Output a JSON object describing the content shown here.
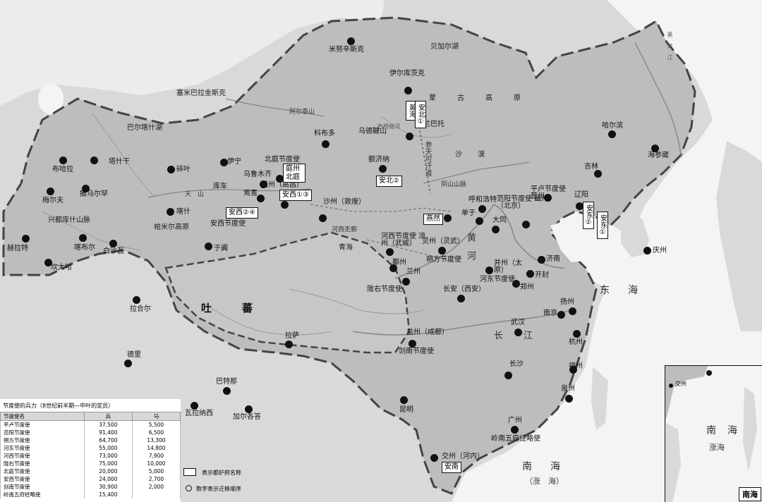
{
  "map": {
    "colors": {
      "land_inside": "#bdbdbd",
      "land_outside": "#d9d9d9",
      "water": "#f4f4f4",
      "border": "#444444"
    },
    "regions": {
      "tubo": "吐　蕃",
      "mongol": "蒙　古　高　原",
      "east_sea": "东　海",
      "south_sea": "南　海",
      "south_sea_sub": "（涨　海）",
      "qinghai": "青海",
      "pamir": "帕米尔高原",
      "desert": "沙　漠",
      "hindu_kush": "兴都库什山脉",
      "samarkand_region": "塞米巴拉金斯克",
      "balkhash": "巴尔喀什湖",
      "baikal": "贝加尔湖",
      "tianshan": "天　山",
      "altai": "阿尔泰山",
      "yangtze": "长　江",
      "yellow_river": "黄　河",
      "heilongjiang": "黑　龙　江",
      "shaanxi_road": "参天可汗道",
      "yinshan": "阴山山脉",
      "hexi_corridor": "河西走廊",
      "jiulong_river": "色楞格河"
    },
    "cities": [
      "米努辛斯克",
      "伊尔库茨克",
      "巴尔喀什湖",
      "乌兰巴托",
      "科布多",
      "乌德鞬山",
      "额济纳",
      "塔什干",
      "碎叶",
      "伊宁",
      "北庭节度使",
      "乌鲁木齐",
      "西州（高昌）",
      "焉耆",
      "库车",
      "喀什",
      "安西节度使",
      "于阗",
      "布哈拉",
      "撒马尔罕",
      "梅尔夫",
      "赫拉特",
      "喀布尔",
      "坎大哈",
      "白沙瓦",
      "拉合尔",
      "德里",
      "巴特那",
      "瓦拉纳西",
      "加尔各答",
      "沙州（敦煌）",
      "河西节度使 凉州（武威）",
      "鄯州",
      "兰州",
      "陇右节度使",
      "灵州（灵武）",
      "朔方节度使",
      "单于",
      "呼和浩特",
      "大同",
      "范阳节度使 幽州（北京）",
      "平卢节度使 营州",
      "辽阳",
      "哈尔滨",
      "吉林",
      "海参崴",
      "庆州",
      "济南",
      "开封",
      "郑州",
      "并州（太原）",
      "河东节度使",
      "长安（西安）",
      "扬州",
      "南京",
      "杭州",
      "武汉",
      "益州（成都）",
      "剑南节度使",
      "长沙",
      "福州",
      "泉州",
      "昆明",
      "广州",
      "岭南五府经略使",
      "交州（河内）",
      "拉萨"
    ],
    "boxes": {
      "hanhai": "瀚海",
      "anbei1": "安北①",
      "anbei2": "安北②",
      "beiting": "庭州北庭",
      "anxi13": "安西①③",
      "anxi24": "安西②④",
      "yanran": "燕然",
      "andong2": "安东②",
      "andong1": "安东①",
      "annan": "安南"
    }
  },
  "garrison": {
    "title": "节度使的兵力（8世纪前半期—中叶的定员）",
    "headers": [
      "节度使名",
      "兵",
      "马"
    ],
    "rows": [
      [
        "平卢节度使",
        "37,500",
        "5,500"
      ],
      [
        "范阳节度使",
        "91,400",
        "6,500"
      ],
      [
        "朔方节度使",
        "64,700",
        "13,300"
      ],
      [
        "河东节度使",
        "55,000",
        "14,800"
      ],
      [
        "河西节度使",
        "73,000",
        "7,900"
      ],
      [
        "陇右节度使",
        "75,000",
        "10,000"
      ],
      [
        "北庭节度使",
        "20,000",
        "5,000"
      ],
      [
        "安西节度使",
        "24,000",
        "2,700"
      ],
      [
        "剑南节度使",
        "30,900",
        "2,000"
      ],
      [
        "岭南五府经略使",
        "15,400",
        ""
      ]
    ]
  },
  "legend": {
    "box_label": "表示都护府名称",
    "circle_label": "数字表示迁移顺序"
  },
  "inset": {
    "title": "南海",
    "labels": [
      "交州",
      "南",
      "海",
      "涨海"
    ]
  }
}
